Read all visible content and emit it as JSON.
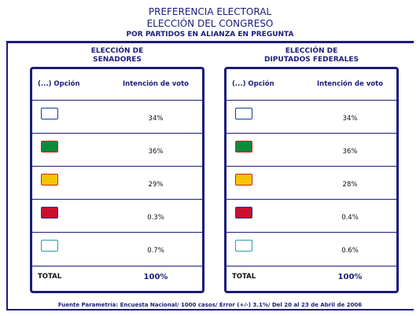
{
  "header": {
    "title": "PREFERENCIA ELECTORAL",
    "subtitle": "ELECCIÓN DEL CONGRESO",
    "note": "POR PARTIDOS EN ALIANZA EN PREGUNTA"
  },
  "panels": [
    {
      "title_lines": [
        "ELECCIÓN DE",
        "SENADORES"
      ],
      "columns": [
        "(...) Opción",
        "Intención de voto"
      ],
      "rows": [
        "34%",
        "36%",
        "29%",
        "0.3%",
        "0.7%"
      ],
      "total": {
        "label": "TOTAL",
        "value": "100%"
      }
    },
    {
      "title_lines": [
        "ELECCIÓN DE",
        "DIPUTADOS FEDERALES"
      ],
      "columns": [
        "(...) Opción",
        "Intención de voto"
      ],
      "rows": [
        "34%",
        "36%",
        "28%",
        "0.4%",
        "0.6%"
      ],
      "total": {
        "label": "TOTAL",
        "value": "100%"
      }
    }
  ],
  "footer": "Fuente Parametría: Encuesta Nacional/ 1000 casos/ Error (+/-) 3.1%/ Del 20 al 23 de Abril de 2006"
}
